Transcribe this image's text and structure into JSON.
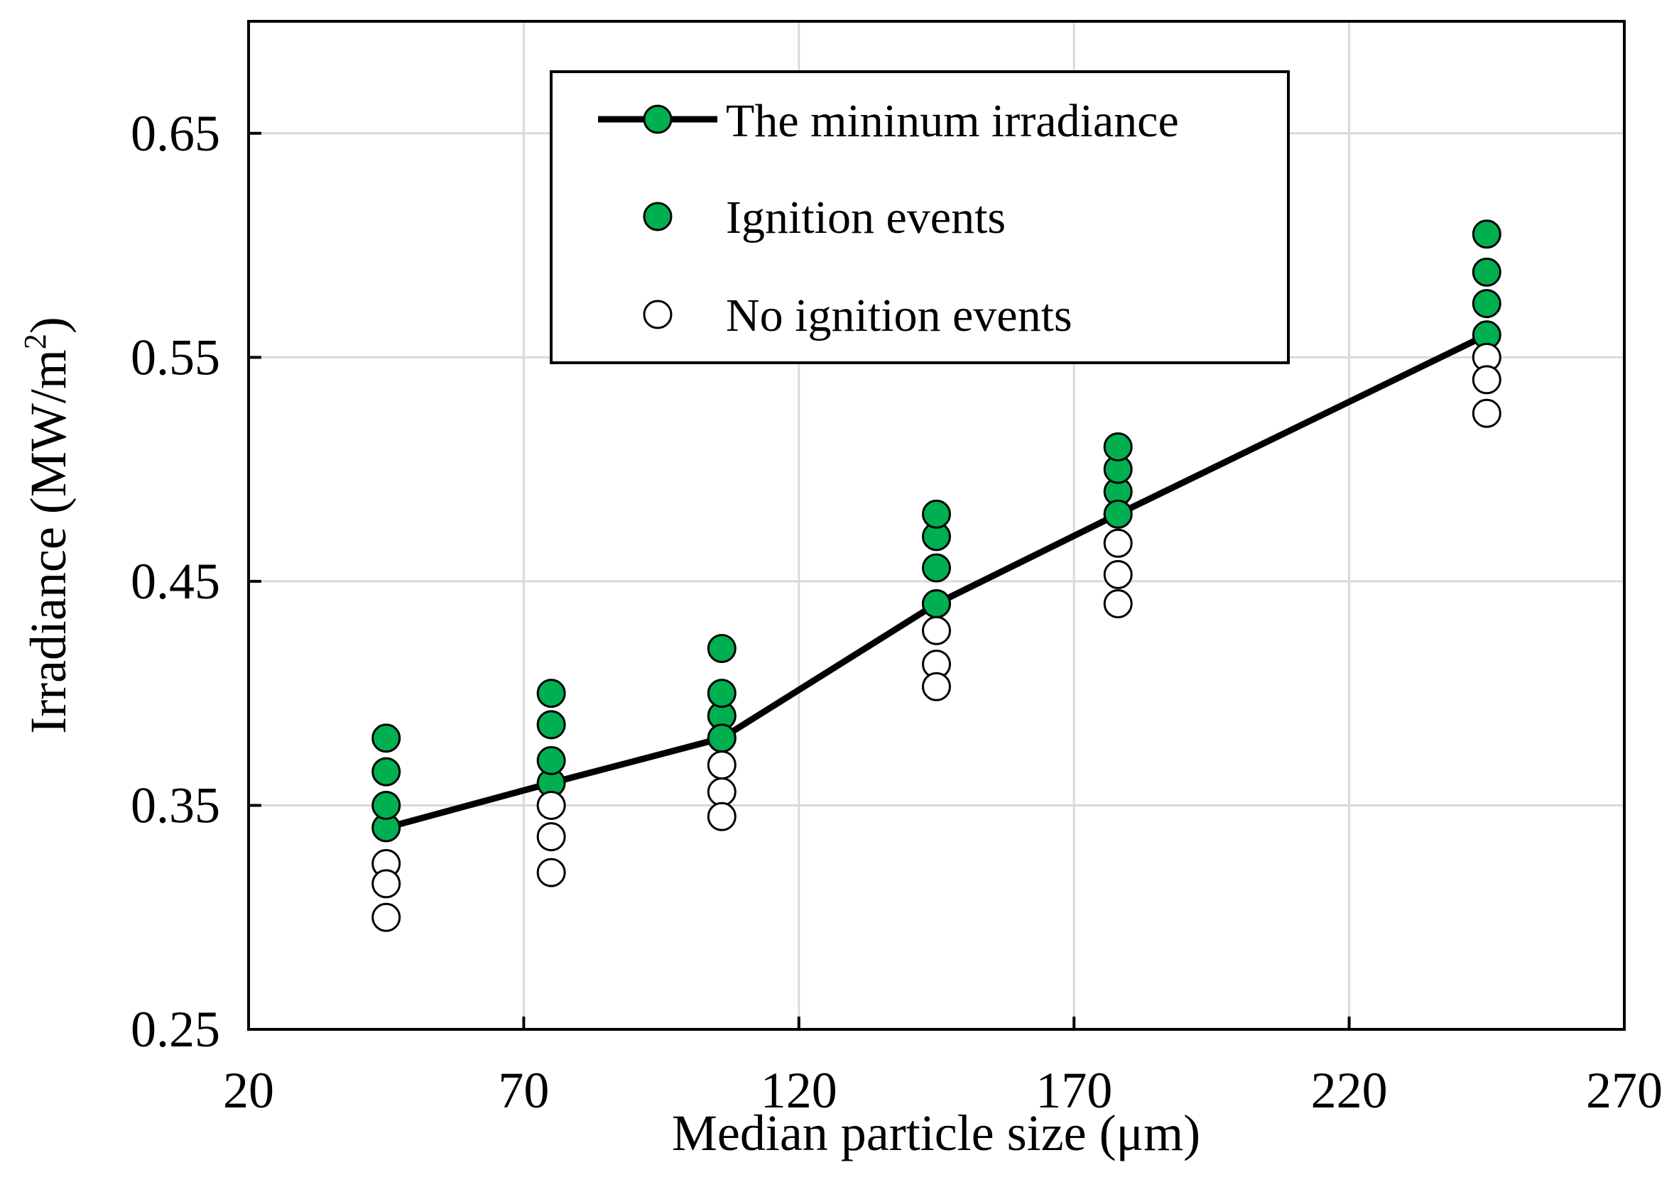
{
  "chart_data": {
    "type": "scatter",
    "title": "",
    "xlabel": "Median particle size (μm)",
    "ylabel_main": "Irradiance (MW/m",
    "ylabel_sup": "2",
    "ylabel_end": ")",
    "xlim": [
      20,
      270
    ],
    "ylim": [
      0.25,
      0.7
    ],
    "x_ticks": [
      20,
      70,
      120,
      170,
      220,
      270
    ],
    "y_ticks": [
      0.25,
      0.35,
      0.45,
      0.55,
      0.65
    ],
    "x_tick_labels": [
      "20",
      "70",
      "120",
      "170",
      "220",
      "270"
    ],
    "y_tick_labels": [
      "0.25",
      "0.35",
      "0.45",
      "0.55",
      "0.65"
    ],
    "grid": true,
    "legend_position": "top-center",
    "colors": {
      "ignition": "#00b050",
      "no_ignition": "#ffffff",
      "line": "#000000"
    },
    "series": [
      {
        "name": "The mininum irradiance",
        "kind": "line+marker",
        "x": [
          45,
          75,
          106,
          145,
          178,
          245
        ],
        "y": [
          0.34,
          0.36,
          0.38,
          0.44,
          0.48,
          0.56
        ]
      },
      {
        "name": "Ignition events",
        "kind": "scatter-filled",
        "x": [
          45,
          45,
          45,
          45,
          75,
          75,
          75,
          75,
          106,
          106,
          106,
          106,
          106,
          145,
          145,
          145,
          145,
          145,
          178,
          178,
          178,
          178,
          178,
          245,
          245,
          245,
          245
        ],
        "y": [
          0.34,
          0.35,
          0.365,
          0.38,
          0.36,
          0.37,
          0.386,
          0.4,
          0.38,
          0.39,
          0.4,
          0.42,
          0.38,
          0.44,
          0.456,
          0.47,
          0.48,
          0.44,
          0.48,
          0.49,
          0.5,
          0.51,
          0.48,
          0.56,
          0.574,
          0.588,
          0.605
        ]
      },
      {
        "name": "No ignition events",
        "kind": "scatter-hollow",
        "x": [
          45,
          45,
          45,
          75,
          75,
          75,
          106,
          106,
          106,
          145,
          145,
          145,
          178,
          178,
          178,
          245,
          245,
          245
        ],
        "y": [
          0.324,
          0.315,
          0.3,
          0.35,
          0.336,
          0.32,
          0.368,
          0.356,
          0.345,
          0.428,
          0.413,
          0.403,
          0.467,
          0.453,
          0.44,
          0.55,
          0.54,
          0.525
        ]
      }
    ]
  }
}
